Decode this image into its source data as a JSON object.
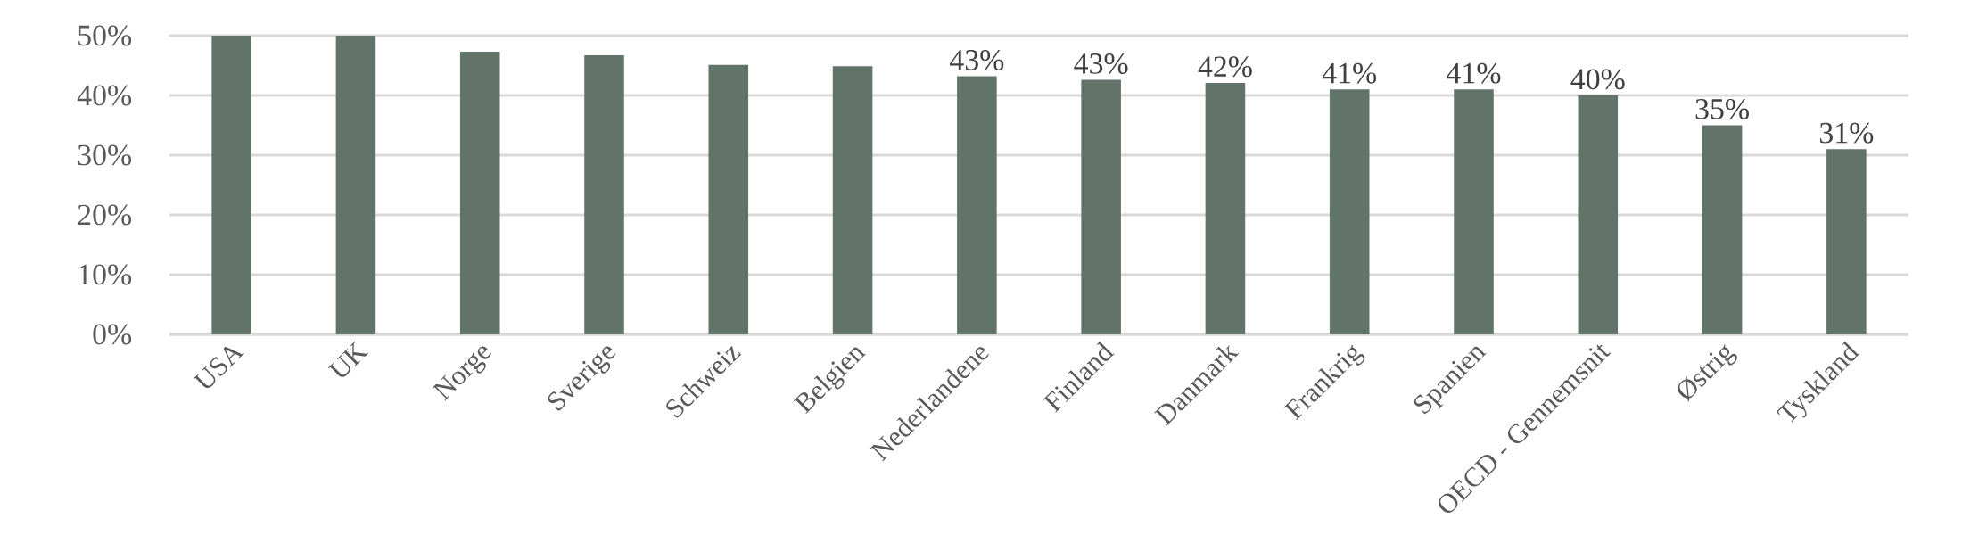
{
  "chart_data": {
    "type": "bar",
    "categories": [
      "USA",
      "UK",
      "Norge",
      "Sverige",
      "Schweiz",
      "Belgien",
      "Nederlandene",
      "Finland",
      "Danmark",
      "Frankrig",
      "Spanien",
      "OECD - Gennemsnit",
      "Østrig",
      "Tyskland"
    ],
    "values": [
      50,
      50,
      47.3,
      46.7,
      45.1,
      44.9,
      43.2,
      42.6,
      42.1,
      41,
      41,
      40,
      35,
      31
    ],
    "color": "#62746a",
    "value_labels": [
      null,
      null,
      null,
      null,
      null,
      null,
      "43%",
      "43%",
      "42%",
      "41%",
      "41%",
      "40%",
      "35%",
      "31%"
    ],
    "ylim": [
      0,
      50
    ],
    "yticks": [
      {
        "value": 0,
        "label": "0%"
      },
      {
        "value": 10,
        "label": "10%"
      },
      {
        "value": 20,
        "label": "20%"
      },
      {
        "value": 30,
        "label": "30%"
      },
      {
        "value": 40,
        "label": "40%"
      },
      {
        "value": 50,
        "label": "50%"
      }
    ],
    "grid": "y"
  }
}
